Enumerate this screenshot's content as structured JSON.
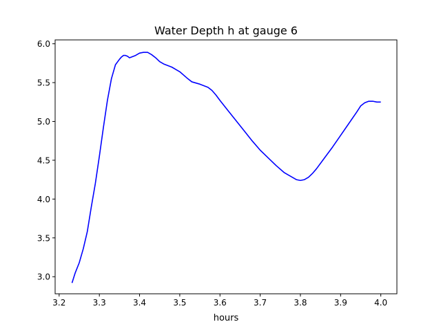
{
  "chart_data": {
    "type": "line",
    "title": "Water Depth h at gauge 6",
    "xlabel": "hours",
    "ylabel": "",
    "xlim": [
      3.19,
      4.04
    ],
    "ylim": [
      2.78,
      6.05
    ],
    "xticks": [
      3.2,
      3.3,
      3.4,
      3.5,
      3.6,
      3.7,
      3.8,
      3.9,
      4.0
    ],
    "xtick_labels": [
      "3.2",
      "3.3",
      "3.4",
      "3.5",
      "3.6",
      "3.7",
      "3.8",
      "3.9",
      "4.0"
    ],
    "yticks": [
      3.0,
      3.5,
      4.0,
      4.5,
      5.0,
      5.5,
      6.0
    ],
    "ytick_labels": [
      "3.0",
      "3.5",
      "4.0",
      "4.5",
      "5.0",
      "5.5",
      "6.0"
    ],
    "grid": false,
    "legend": "none",
    "series": [
      {
        "color": "#0000ff",
        "x": [
          3.232,
          3.24,
          3.25,
          3.26,
          3.27,
          3.28,
          3.29,
          3.3,
          3.31,
          3.32,
          3.33,
          3.34,
          3.35,
          3.355,
          3.36,
          3.365,
          3.37,
          3.375,
          3.38,
          3.39,
          3.4,
          3.41,
          3.42,
          3.43,
          3.44,
          3.45,
          3.46,
          3.48,
          3.5,
          3.52,
          3.53,
          3.55,
          3.57,
          3.58,
          3.59,
          3.6,
          3.62,
          3.64,
          3.66,
          3.68,
          3.7,
          3.72,
          3.74,
          3.76,
          3.78,
          3.79,
          3.8,
          3.81,
          3.82,
          3.83,
          3.84,
          3.86,
          3.88,
          3.9,
          3.92,
          3.94,
          3.95,
          3.96,
          3.97,
          3.98,
          3.99,
          4.0
        ],
        "y": [
          2.92,
          3.05,
          3.18,
          3.36,
          3.58,
          3.9,
          4.2,
          4.55,
          4.92,
          5.27,
          5.55,
          5.73,
          5.8,
          5.83,
          5.85,
          5.85,
          5.84,
          5.82,
          5.83,
          5.85,
          5.88,
          5.89,
          5.89,
          5.86,
          5.82,
          5.77,
          5.74,
          5.7,
          5.64,
          5.55,
          5.51,
          5.48,
          5.44,
          5.4,
          5.34,
          5.27,
          5.14,
          5.01,
          4.88,
          4.75,
          4.63,
          4.53,
          4.43,
          4.34,
          4.28,
          4.25,
          4.24,
          4.25,
          4.28,
          4.33,
          4.39,
          4.53,
          4.67,
          4.82,
          4.97,
          5.12,
          5.2,
          5.24,
          5.26,
          5.26,
          5.25,
          5.25
        ]
      }
    ]
  }
}
